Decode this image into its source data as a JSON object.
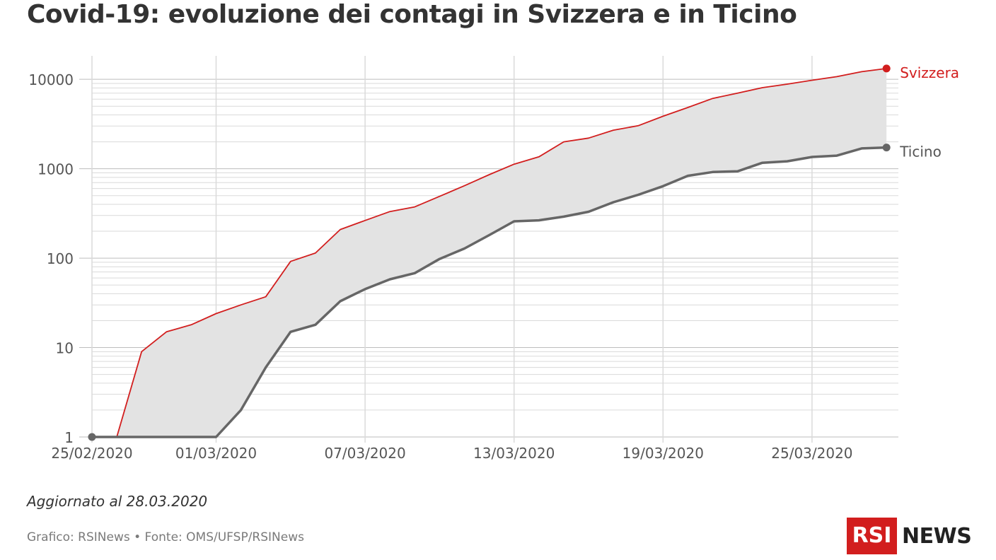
{
  "title": "Covid-19: evoluzione dei contagi in Svizzera e in Ticino",
  "updated": "Aggiornato al 28.03.2020",
  "source": "Grafico: RSINews • Fonte: OMS/UFSP/RSINews",
  "logo": {
    "rsi": "RSI",
    "news": "NEWS"
  },
  "colors": {
    "svizzera": "#d21e1e",
    "ticino": "#666666",
    "band": "#e3e3e3",
    "grid": "#dadada",
    "logo_red": "#d21e1e"
  },
  "chart_data": {
    "type": "line",
    "yscale": "log",
    "ylim": [
      1,
      10000
    ],
    "yticks": [
      1,
      10,
      100,
      1000,
      10000
    ],
    "ytick_labels": [
      "1",
      "10",
      "100",
      "1000",
      "10000"
    ],
    "x": [
      "25/02/2020",
      "26/02/2020",
      "27/02/2020",
      "28/02/2020",
      "29/02/2020",
      "01/03/2020",
      "02/03/2020",
      "03/03/2020",
      "04/03/2020",
      "05/03/2020",
      "06/03/2020",
      "07/03/2020",
      "08/03/2020",
      "09/03/2020",
      "10/03/2020",
      "11/03/2020",
      "12/03/2020",
      "13/03/2020",
      "14/03/2020",
      "15/03/2020",
      "16/03/2020",
      "17/03/2020",
      "18/03/2020",
      "19/03/2020",
      "20/03/2020",
      "21/03/2020",
      "22/03/2020",
      "23/03/2020",
      "24/03/2020",
      "25/03/2020",
      "26/03/2020",
      "27/03/2020",
      "28/03/2020"
    ],
    "xtick_labels": [
      "25/02/2020",
      "01/03/2020",
      "07/03/2020",
      "13/03/2020",
      "19/03/2020",
      "25/03/2020"
    ],
    "grid": true,
    "fill_between_series": true,
    "series": [
      {
        "name": "Svizzera",
        "values": [
          1,
          1,
          9,
          15,
          18,
          24,
          30,
          37,
          92,
          114,
          209,
          264,
          332,
          374,
          491,
          645,
          858,
          1125,
          1359,
          2000,
          2200,
          2700,
          3028,
          3863,
          4840,
          6113,
          7014,
          8060,
          8836,
          9765,
          10714,
          12161,
          13213
        ]
      },
      {
        "name": "Ticino",
        "values": [
          1,
          1,
          1,
          1,
          1,
          1,
          2,
          6,
          15,
          18,
          33,
          45,
          58,
          68,
          98,
          128,
          181,
          258,
          265,
          291,
          330,
          422,
          511,
          638,
          834,
          918,
          936,
          1165,
          1211,
          1354,
          1401,
          1688,
          1727
        ]
      }
    ]
  }
}
